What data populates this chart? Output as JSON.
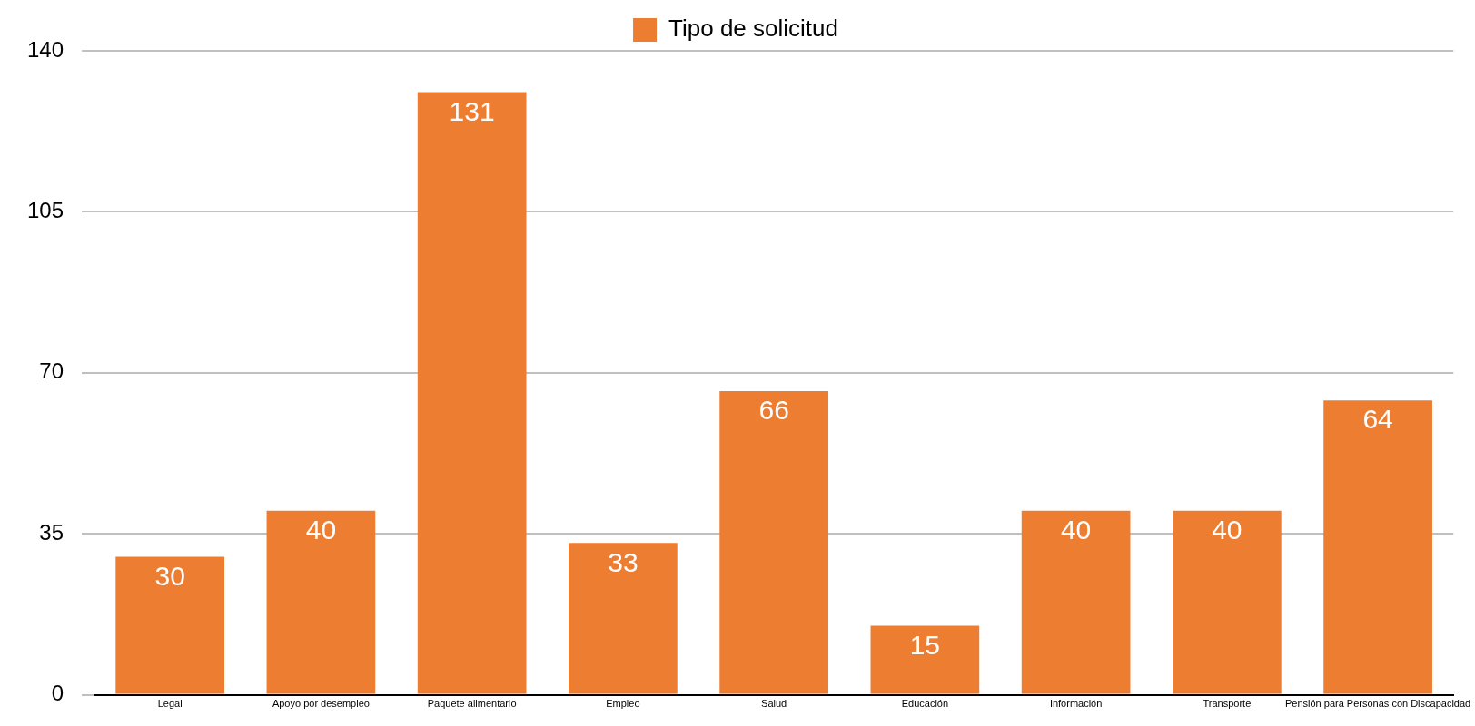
{
  "chart_data": {
    "type": "bar",
    "categories": [
      "Legal",
      "Apoyo por desempleo",
      "Paquete alimentario",
      "Empleo",
      "Salud",
      "Educación",
      "Información",
      "Transporte",
      "Pensión para Personas con Discapacidad"
    ],
    "series": [
      {
        "name": "Tipo de solicitud",
        "color": "#ed7d31",
        "values": [
          30,
          40,
          131,
          33,
          66,
          15,
          40,
          40,
          64
        ]
      }
    ],
    "ylim": [
      0,
      140
    ],
    "yticks": [
      0,
      35,
      70,
      105,
      140
    ],
    "grid": "y",
    "legend": "top",
    "data_labels": true
  }
}
